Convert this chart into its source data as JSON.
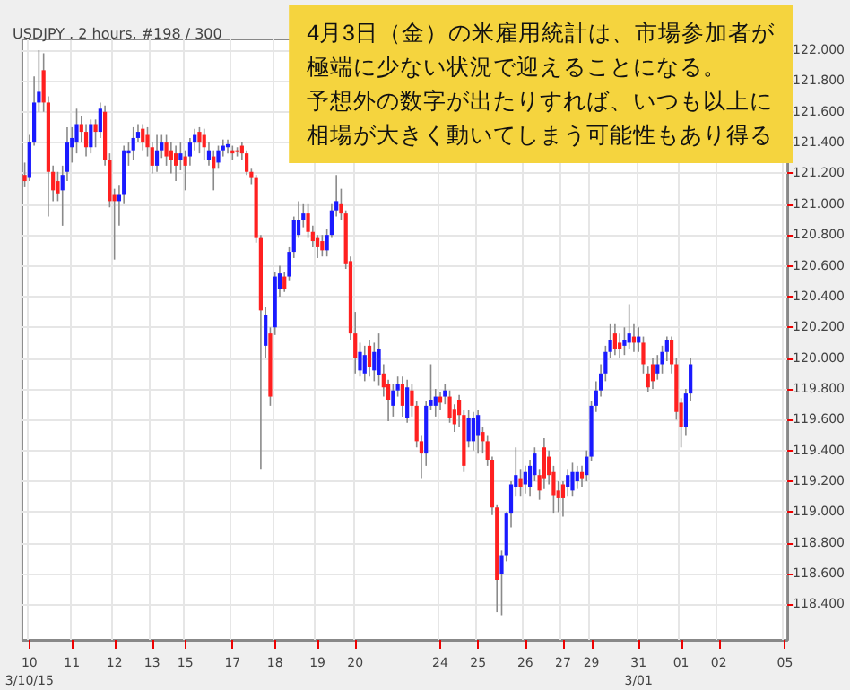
{
  "chart_data": {
    "type": "candlestick",
    "title": "USDJPY , 2 hours, #198 / 300",
    "annotations": [
      "4月3日（金）の米雇用統計は、市場参加者が",
      "極端に少ない状況で迎えることになる。",
      "予想外の数字が出たりすれば、いつも以上に",
      "相場が大きく動いてしまう可能性もあり得る"
    ],
    "categories": [
      null,
      "10\n3/10/15",
      null,
      null,
      null,
      null,
      null,
      null,
      null,
      null,
      "11",
      null,
      null,
      null,
      null,
      null,
      null,
      null,
      null,
      "12",
      null,
      null,
      null,
      null,
      null,
      null,
      null,
      "13",
      null,
      null,
      null,
      null,
      null,
      null,
      "15",
      null,
      null,
      null,
      null,
      null,
      null,
      null,
      null,
      null,
      "17",
      null,
      null,
      null,
      null,
      null,
      null,
      null,
      null,
      "18",
      null,
      null,
      null,
      null,
      null,
      null,
      null,
      null,
      "19",
      null,
      null,
      null,
      null,
      null,
      null,
      null,
      "20",
      null,
      null,
      null,
      null,
      null,
      null,
      null,
      null,
      null,
      null,
      null,
      null,
      null,
      null,
      null,
      null,
      null,
      "24",
      null,
      null,
      null,
      null,
      null,
      null,
      null,
      "25",
      null,
      null,
      null,
      null,
      null,
      null,
      null,
      null,
      null,
      "26",
      null,
      null,
      null,
      null,
      null,
      null,
      null,
      "27",
      null,
      null,
      null,
      null,
      null,
      "29",
      null,
      null,
      null,
      null,
      null,
      null,
      null,
      null,
      null,
      "31\n3/01",
      null,
      null,
      null,
      null,
      null,
      null,
      null,
      null,
      "01",
      null,
      null,
      null,
      null,
      null,
      null,
      null,
      "02",
      null,
      null,
      null,
      null,
      null,
      null,
      null,
      null,
      null,
      null,
      null,
      null,
      null,
      "05"
    ],
    "ohlc": [
      [
        121.19,
        121.27,
        121.11,
        121.15
      ],
      [
        121.17,
        121.45,
        121.15,
        121.4
      ],
      [
        121.4,
        121.83,
        121.38,
        121.66
      ],
      [
        121.66,
        122.0,
        121.6,
        121.73
      ],
      [
        121.87,
        121.98,
        121.6,
        121.66
      ],
      [
        121.66,
        121.7,
        120.92,
        121.21
      ],
      [
        121.21,
        121.25,
        121.02,
        121.09
      ],
      [
        121.15,
        121.21,
        121.02,
        121.07
      ],
      [
        121.09,
        121.25,
        120.86,
        121.19
      ],
      [
        121.21,
        121.5,
        121.15,
        121.4
      ],
      [
        121.37,
        121.5,
        121.27,
        121.43
      ],
      [
        121.4,
        121.62,
        121.33,
        121.52
      ],
      [
        121.52,
        121.57,
        121.4,
        121.47
      ],
      [
        121.47,
        121.52,
        121.31,
        121.37
      ],
      [
        121.37,
        121.55,
        121.33,
        121.52
      ],
      [
        121.52,
        121.55,
        121.37,
        121.47
      ],
      [
        121.47,
        121.66,
        121.43,
        121.62
      ],
      [
        121.6,
        121.64,
        121.25,
        121.29
      ],
      [
        121.29,
        121.33,
        120.98,
        121.02
      ],
      [
        121.06,
        121.1,
        120.64,
        121.02
      ],
      [
        121.02,
        121.12,
        120.86,
        121.06
      ],
      [
        121.06,
        121.38,
        121.0,
        121.35
      ],
      [
        121.33,
        121.4,
        121.25,
        121.35
      ],
      [
        121.35,
        121.5,
        121.29,
        121.43
      ],
      [
        121.43,
        121.52,
        121.4,
        121.47
      ],
      [
        121.49,
        121.52,
        121.35,
        121.4
      ],
      [
        121.45,
        121.5,
        121.31,
        121.37
      ],
      [
        121.37,
        121.4,
        121.2,
        121.25
      ],
      [
        121.25,
        121.45,
        121.21,
        121.35
      ],
      [
        121.35,
        121.45,
        121.3,
        121.4
      ],
      [
        121.4,
        121.45,
        121.25,
        121.31
      ],
      [
        121.35,
        121.4,
        121.2,
        121.29
      ],
      [
        121.33,
        121.38,
        121.15,
        121.25
      ],
      [
        121.29,
        121.4,
        121.22,
        121.33
      ],
      [
        121.31,
        121.35,
        121.09,
        121.25
      ],
      [
        121.31,
        121.43,
        121.25,
        121.4
      ],
      [
        121.4,
        121.49,
        121.35,
        121.45
      ],
      [
        121.47,
        121.5,
        121.33,
        121.4
      ],
      [
        121.45,
        121.49,
        121.29,
        121.37
      ],
      [
        121.29,
        121.4,
        121.25,
        121.35
      ],
      [
        121.31,
        121.35,
        121.09,
        121.23
      ],
      [
        121.27,
        121.38,
        121.23,
        121.35
      ],
      [
        121.35,
        121.42,
        121.31,
        121.38
      ],
      [
        121.37,
        121.42,
        121.33,
        121.39
      ],
      [
        121.35,
        121.38,
        121.29,
        121.33
      ],
      [
        121.35,
        121.37,
        121.31,
        121.34
      ],
      [
        121.38,
        121.4,
        121.29,
        121.33
      ],
      [
        121.33,
        121.35,
        121.19,
        121.21
      ],
      [
        121.21,
        121.23,
        121.13,
        121.17
      ],
      [
        121.17,
        121.19,
        120.75,
        120.78
      ],
      [
        120.78,
        120.8,
        119.28,
        120.31
      ],
      [
        120.08,
        120.33,
        120.0,
        120.28
      ],
      [
        120.16,
        120.2,
        119.69,
        119.75
      ],
      [
        120.2,
        120.56,
        120.15,
        120.53
      ],
      [
        120.45,
        120.6,
        120.4,
        120.55
      ],
      [
        120.53,
        120.56,
        120.43,
        120.45
      ],
      [
        120.53,
        120.72,
        120.5,
        120.69
      ],
      [
        120.69,
        120.92,
        120.65,
        120.9
      ],
      [
        120.8,
        121.02,
        120.78,
        120.9
      ],
      [
        120.9,
        121.0,
        120.85,
        120.94
      ],
      [
        120.94,
        121.0,
        120.78,
        120.82
      ],
      [
        120.82,
        120.86,
        120.72,
        120.76
      ],
      [
        120.78,
        120.8,
        120.65,
        120.72
      ],
      [
        120.76,
        120.8,
        120.66,
        120.7
      ],
      [
        120.7,
        120.84,
        120.66,
        120.8
      ],
      [
        120.8,
        121.0,
        120.78,
        120.96
      ],
      [
        120.96,
        121.19,
        120.92,
        121.02
      ],
      [
        121.0,
        121.1,
        120.9,
        120.94
      ],
      [
        120.94,
        120.96,
        120.58,
        120.61
      ],
      [
        120.63,
        120.66,
        120.12,
        120.16
      ],
      [
        120.16,
        120.3,
        119.9,
        120.0
      ],
      [
        119.92,
        120.1,
        119.88,
        120.04
      ],
      [
        119.9,
        120.08,
        119.85,
        120.02
      ],
      [
        120.08,
        120.12,
        119.88,
        119.94
      ],
      [
        119.92,
        120.1,
        119.85,
        120.04
      ],
      [
        119.89,
        120.16,
        119.82,
        120.06
      ],
      [
        119.9,
        119.96,
        119.75,
        119.81
      ],
      [
        119.83,
        119.86,
        119.59,
        119.73
      ],
      [
        119.69,
        119.83,
        119.62,
        119.79
      ],
      [
        119.79,
        119.88,
        119.75,
        119.83
      ],
      [
        119.83,
        119.88,
        119.62,
        119.69
      ],
      [
        119.61,
        119.86,
        119.58,
        119.81
      ],
      [
        119.79,
        119.83,
        119.62,
        119.69
      ],
      [
        119.69,
        119.72,
        119.42,
        119.46
      ],
      [
        119.46,
        119.5,
        119.22,
        119.38
      ],
      [
        119.38,
        119.72,
        119.3,
        119.69
      ],
      [
        119.69,
        119.96,
        119.66,
        119.73
      ],
      [
        119.69,
        119.8,
        119.62,
        119.75
      ],
      [
        119.75,
        119.78,
        119.66,
        119.71
      ],
      [
        119.75,
        119.83,
        119.7,
        119.79
      ],
      [
        119.75,
        119.79,
        119.58,
        119.61
      ],
      [
        119.67,
        119.7,
        119.52,
        119.57
      ],
      [
        119.73,
        119.76,
        119.55,
        119.63
      ],
      [
        119.63,
        119.66,
        119.26,
        119.3
      ],
      [
        119.46,
        119.66,
        119.42,
        119.61
      ],
      [
        119.46,
        119.65,
        119.4,
        119.61
      ],
      [
        119.5,
        119.66,
        119.38,
        119.63
      ],
      [
        119.52,
        119.55,
        119.38,
        119.46
      ],
      [
        119.46,
        119.5,
        119.3,
        119.34
      ],
      [
        119.34,
        119.36,
        118.98,
        119.03
      ],
      [
        119.03,
        119.05,
        118.35,
        118.56
      ],
      [
        118.6,
        118.75,
        118.33,
        118.72
      ],
      [
        118.72,
        119.0,
        118.68,
        118.99
      ],
      [
        118.99,
        119.2,
        118.9,
        119.18
      ],
      [
        119.16,
        119.42,
        119.1,
        119.24
      ],
      [
        119.22,
        119.28,
        119.1,
        119.16
      ],
      [
        119.18,
        119.3,
        119.12,
        119.26
      ],
      [
        119.16,
        119.34,
        119.1,
        119.3
      ],
      [
        119.24,
        119.42,
        119.2,
        119.38
      ],
      [
        119.24,
        119.28,
        119.08,
        119.14
      ],
      [
        119.42,
        119.48,
        119.15,
        119.22
      ],
      [
        119.36,
        119.4,
        119.18,
        119.24
      ],
      [
        119.26,
        119.3,
        118.99,
        119.11
      ],
      [
        119.14,
        119.2,
        119.0,
        119.09
      ],
      [
        119.18,
        119.2,
        118.97,
        119.09
      ],
      [
        119.16,
        119.28,
        119.1,
        119.24
      ],
      [
        119.14,
        119.32,
        119.1,
        119.26
      ],
      [
        119.2,
        119.3,
        119.15,
        119.26
      ],
      [
        119.26,
        119.3,
        119.16,
        119.22
      ],
      [
        119.24,
        119.4,
        119.2,
        119.36
      ],
      [
        119.36,
        119.72,
        119.33,
        119.69
      ],
      [
        119.69,
        119.85,
        119.65,
        119.79
      ],
      [
        119.79,
        119.96,
        119.75,
        119.9
      ],
      [
        119.9,
        120.08,
        119.85,
        120.04
      ],
      [
        120.04,
        120.22,
        120.0,
        120.12
      ],
      [
        120.16,
        120.22,
        120.02,
        120.06
      ],
      [
        120.1,
        120.16,
        120.0,
        120.06
      ],
      [
        120.08,
        120.2,
        120.02,
        120.12
      ],
      [
        120.1,
        120.35,
        120.06,
        120.16
      ],
      [
        120.14,
        120.22,
        120.04,
        120.1
      ],
      [
        120.1,
        120.2,
        120.04,
        120.14
      ],
      [
        120.1,
        120.14,
        119.9,
        119.96
      ],
      [
        119.9,
        119.95,
        119.78,
        119.81
      ],
      [
        119.96,
        120.0,
        119.8,
        119.85
      ],
      [
        119.9,
        120.02,
        119.86,
        119.96
      ],
      [
        119.96,
        120.08,
        119.9,
        120.04
      ],
      [
        120.04,
        120.14,
        119.98,
        120.12
      ],
      [
        120.12,
        120.14,
        119.9,
        119.96
      ],
      [
        119.96,
        120.0,
        119.6,
        119.65
      ],
      [
        119.71,
        119.74,
        119.42,
        119.55
      ],
      [
        119.55,
        119.8,
        119.5,
        119.77
      ],
      [
        119.77,
        120.0,
        119.72,
        119.96
      ],
      null,
      null,
      null,
      null,
      null,
      null,
      null,
      null,
      null,
      null,
      null,
      null,
      null,
      null,
      null,
      null,
      null,
      null,
      null,
      null
    ],
    "ylim": [
      118.17,
      122.07
    ],
    "yticks": [
      {
        "value": 118.4,
        "label": "118.400"
      },
      {
        "value": 118.6,
        "label": "118.600"
      },
      {
        "value": 118.8,
        "label": "118.800"
      },
      {
        "value": 119.0,
        "label": "119.000"
      },
      {
        "value": 119.2,
        "label": "119.200"
      },
      {
        "value": 119.4,
        "label": "119.400"
      },
      {
        "value": 119.6,
        "label": "119.600"
      },
      {
        "value": 119.8,
        "label": "119.800"
      },
      {
        "value": 120.0,
        "label": "120.000"
      },
      {
        "value": 120.2,
        "label": "120.200"
      },
      {
        "value": 120.4,
        "label": "120.400"
      },
      {
        "value": 120.6,
        "label": "120.600"
      },
      {
        "value": 120.8,
        "label": "120.800"
      },
      {
        "value": 121.0,
        "label": "121.000"
      },
      {
        "value": 121.2,
        "label": "121.200"
      },
      {
        "value": 121.4,
        "label": "121.400"
      },
      {
        "value": 121.6,
        "label": "121.600"
      },
      {
        "value": 121.8,
        "label": "121.800"
      },
      {
        "value": 122.0,
        "label": "122.000"
      }
    ],
    "grid": true
  }
}
